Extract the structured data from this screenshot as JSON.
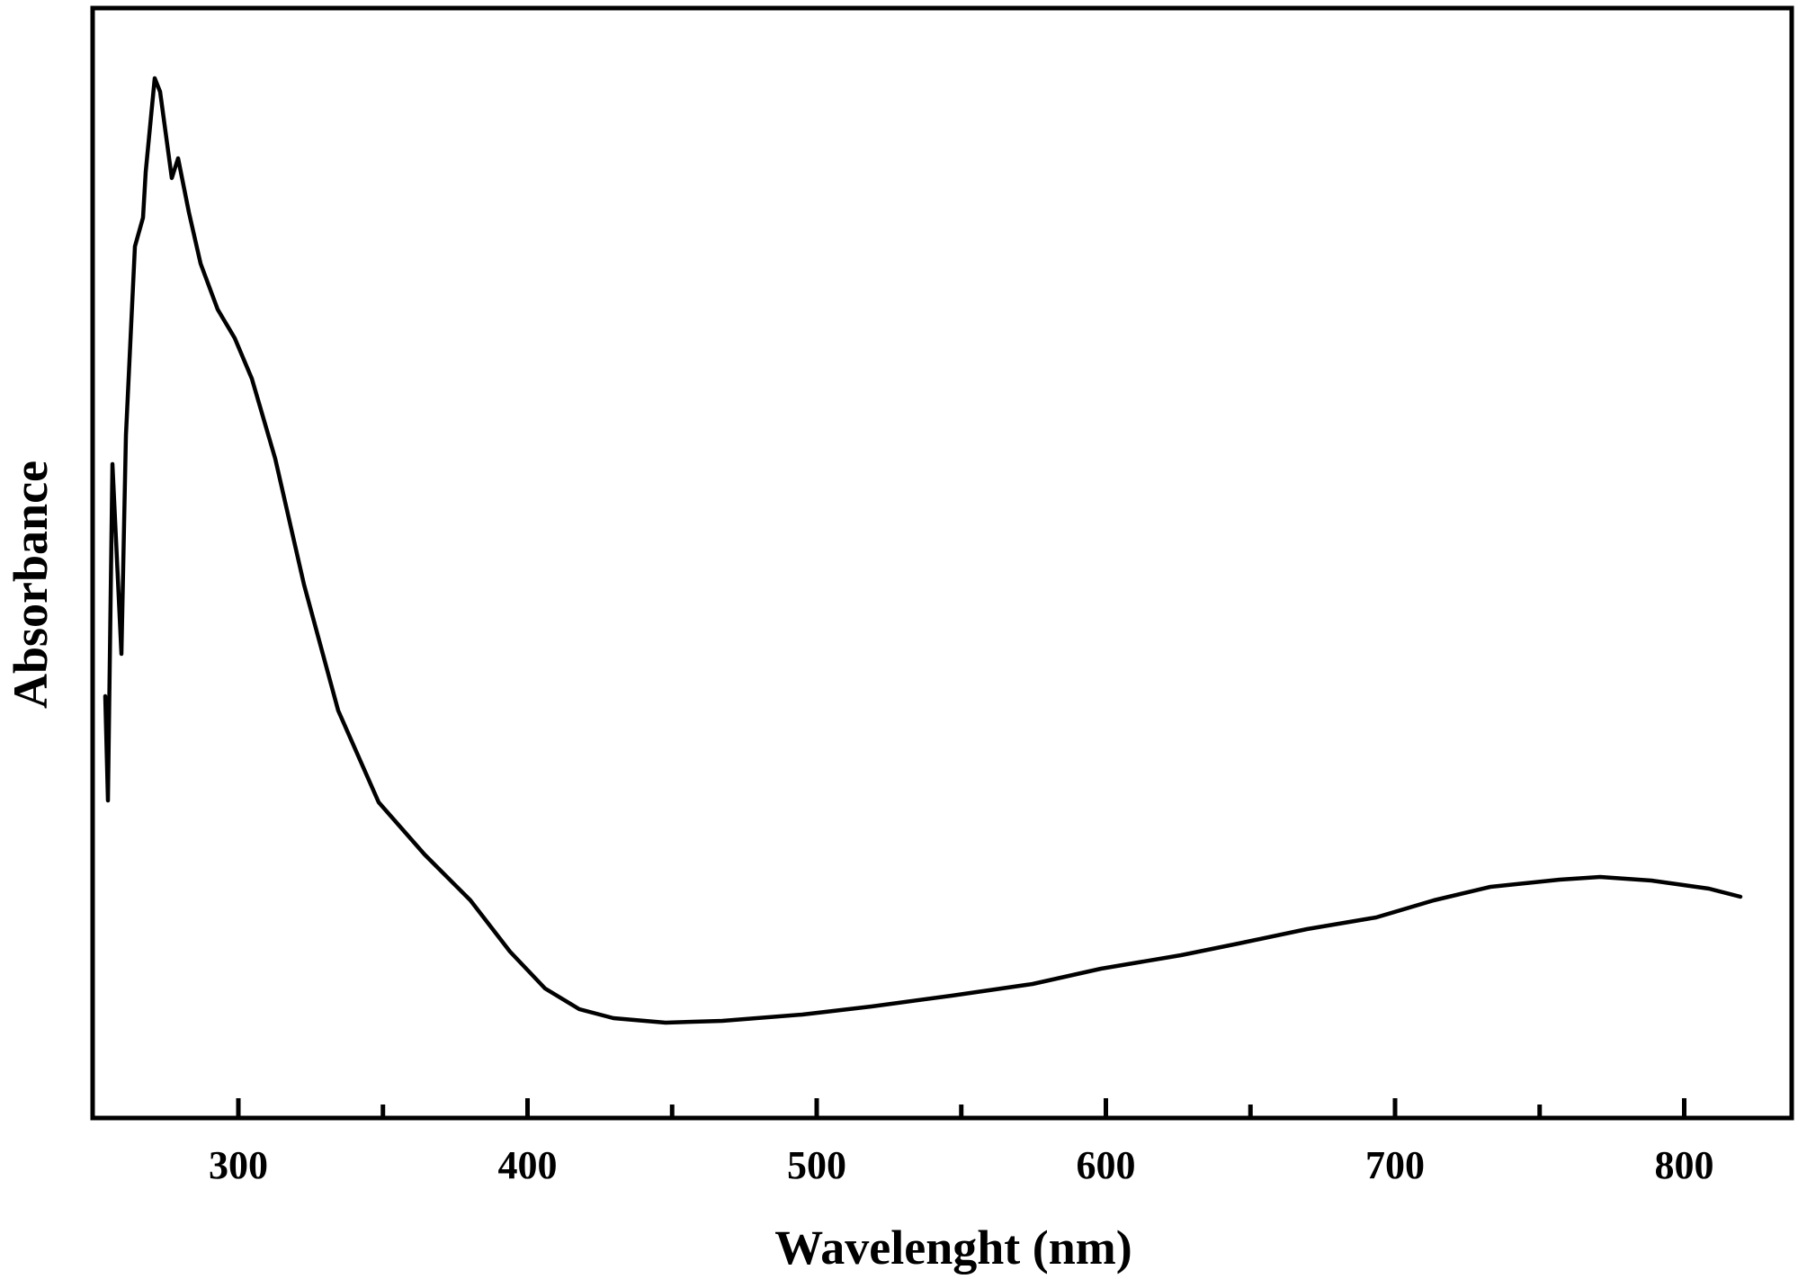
{
  "chart_data": {
    "type": "line",
    "title": "",
    "xlabel": "Wavelenght (nm)",
    "ylabel": "Absorbance",
    "xlim": [
      250,
      830
    ],
    "x_ticks": [
      300,
      400,
      500,
      600,
      700,
      800
    ],
    "x_minor_ticks": [
      350,
      450,
      550,
      650,
      750
    ],
    "y_ticks": [],
    "grid": false,
    "legend": null,
    "series": [
      {
        "name": "Absorbance",
        "color": "#000000",
        "x": [
          254,
          255,
          257,
          260,
          262,
          264,
          267,
          268,
          271,
          273,
          277,
          279,
          283,
          287,
          293,
          299,
          305,
          313,
          323,
          335,
          349,
          365,
          381,
          395,
          407,
          418,
          436,
          455,
          483,
          507,
          535,
          563,
          586,
          615,
          641,
          665,
          689,
          713,
          738,
          756,
          780,
          791,
          808,
          828,
          829
        ],
        "values": [
          0.5,
          0.38,
          0.65,
          0.54,
          0.68,
          0.94,
          0.97,
          1.02,
          1.08,
          1.06,
          0.98,
          1.01,
          0.96,
          0.91,
          0.87,
          0.83,
          0.77,
          0.66,
          0.48,
          0.31,
          0.24,
          0.2,
          0.15,
          0.11,
          0.085,
          0.072,
          0.065,
          0.067,
          0.076,
          0.088,
          0.103,
          0.12,
          0.14,
          0.155,
          0.17,
          0.19,
          0.205,
          0.23,
          0.25,
          0.26,
          0.263,
          0.26,
          0.25,
          0.24,
          0.238
        ]
      }
    ]
  },
  "axes": {
    "x_title": "Wavelenght (nm)",
    "y_title": "Absorbance",
    "x_tick_labels": [
      "300",
      "400",
      "500",
      "600",
      "700",
      "800"
    ]
  }
}
